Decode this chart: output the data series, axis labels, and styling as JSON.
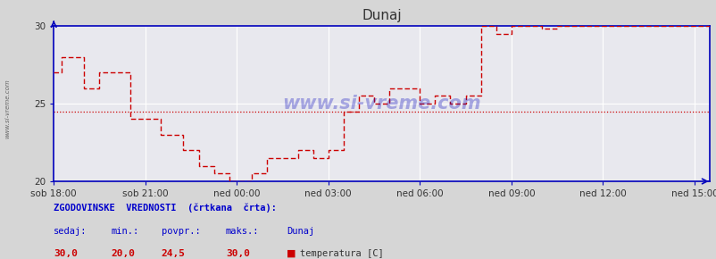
{
  "title": "Dunaj",
  "bg_color": "#d6d6d6",
  "plot_bg_color": "#e8e8ee",
  "grid_color": "#ffffff",
  "line_color": "#cc0000",
  "avg_line_color": "#cc0000",
  "axis_color": "#0000bb",
  "text_color_blue": "#0000cc",
  "text_color_red": "#cc0000",
  "text_color_dark": "#333333",
  "ylim": [
    20,
    30
  ],
  "yticks": [
    20,
    25,
    30
  ],
  "xlabel_ticks": [
    "sob 18:00",
    "sob 21:00",
    "ned 00:00",
    "ned 03:00",
    "ned 06:00",
    "ned 09:00",
    "ned 12:00",
    "ned 15:00"
  ],
  "avg_value": 24.5,
  "watermark": "www.si-vreme.com",
  "left_label": "www.si-vreme.com",
  "footer_line1": "ZGODOVINSKE  VREDNOSTI  (črtkana  črta):",
  "footer_col1": "sedaj:",
  "footer_col2": "min.:",
  "footer_col3": "povpr.:",
  "footer_col4": "maks.:",
  "footer_col5": "Dunaj",
  "footer_val1": "30,0",
  "footer_val2": "20,0",
  "footer_val3": "24,5",
  "footer_val4": "30,0",
  "footer_series": "temperatura [C]",
  "data_x": [
    0.0,
    0.25,
    0.25,
    1.0,
    1.0,
    1.5,
    1.5,
    2.5,
    2.5,
    3.5,
    3.5,
    4.25,
    4.25,
    4.75,
    4.75,
    5.25,
    5.25,
    5.75,
    5.75,
    6.5,
    6.5,
    7.0,
    7.0,
    8.0,
    8.0,
    8.5,
    8.5,
    9.0,
    9.0,
    9.5,
    9.5,
    10.0,
    10.0,
    10.5,
    10.5,
    11.0,
    11.0,
    12.0,
    12.0,
    12.5,
    12.5,
    13.0,
    13.0,
    13.5,
    13.5,
    14.0,
    14.0,
    14.5,
    14.5,
    15.0,
    15.0,
    16.0,
    16.0,
    16.5,
    16.5,
    17.5,
    17.5,
    21.5
  ],
  "data_y": [
    27.0,
    27.0,
    28.0,
    28.0,
    26.0,
    26.0,
    27.0,
    27.0,
    24.0,
    24.0,
    23.0,
    23.0,
    22.0,
    22.0,
    21.0,
    21.0,
    20.5,
    20.5,
    20.0,
    20.0,
    20.5,
    20.5,
    21.5,
    21.5,
    22.0,
    22.0,
    21.5,
    21.5,
    22.0,
    22.0,
    24.5,
    24.5,
    25.5,
    25.5,
    25.0,
    25.0,
    26.0,
    26.0,
    25.0,
    25.0,
    25.5,
    25.5,
    25.0,
    25.0,
    25.5,
    25.5,
    30.0,
    30.0,
    29.5,
    29.5,
    30.0,
    30.0,
    29.8,
    29.8,
    30.0,
    30.0,
    30.0,
    30.0
  ]
}
